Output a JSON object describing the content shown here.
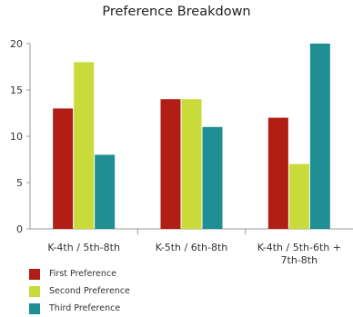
{
  "chart_data": {
    "type": "bar",
    "title": "Preference Breakdown",
    "categories": [
      [
        "K-4th / 5th-8th"
      ],
      [
        "K-5th / 6th-8th"
      ],
      [
        "K-4th / 5th-6th +",
        "7th-8th"
      ]
    ],
    "series": [
      {
        "name": "First Preference",
        "values": [
          13,
          14,
          12
        ],
        "color": "#b01e16"
      },
      {
        "name": "Second Preference",
        "values": [
          18,
          14,
          7
        ],
        "color": "#c9db3a"
      },
      {
        "name": "Third Preference",
        "values": [
          8,
          11,
          20
        ],
        "color": "#1f8f93"
      }
    ],
    "ylim": [
      0,
      20
    ],
    "yticks": [
      0,
      5,
      10,
      15,
      20
    ],
    "grid": false,
    "legend_position": "bottom-left"
  }
}
